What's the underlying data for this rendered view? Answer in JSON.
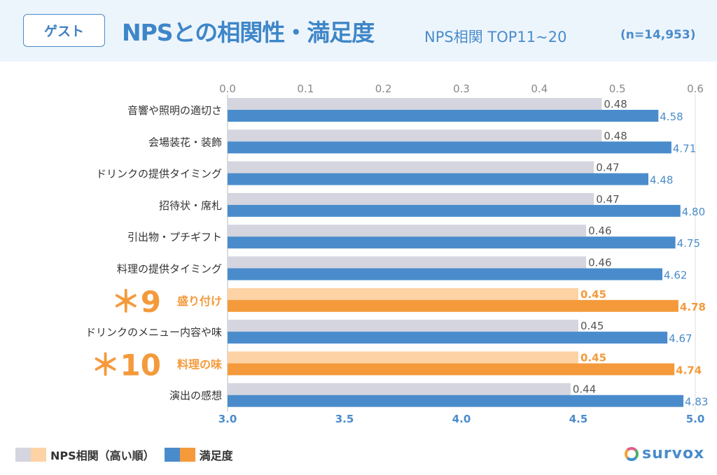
{
  "header": {
    "badge": "ゲスト",
    "title": "NPSとの相関性・満足度",
    "subtitle": "NPS相関 TOP11~20",
    "sample": "(n=14,953)"
  },
  "legend": {
    "nps": "NPS相関（高い順）",
    "sat": "満足度"
  },
  "logo": "survox",
  "colors": {
    "grey": "#d4d5df",
    "blue": "#4a8ccb",
    "lightOrange": "#fdd3a5",
    "orange": "#f49a3b"
  },
  "chart_data": {
    "type": "bar",
    "orientation": "horizontal",
    "top_axis": {
      "name": "NPS相関",
      "range": [
        0,
        0.6
      ],
      "ticks": [
        "0.0",
        "0.1",
        "0.2",
        "0.3",
        "0.4",
        "0.5",
        "0.6"
      ]
    },
    "bottom_axis": {
      "name": "満足度",
      "range": [
        3.0,
        5.0
      ],
      "ticks": [
        "3.0",
        "3.5",
        "4.0",
        "4.5",
        "5.0"
      ]
    },
    "categories": [
      "音響や照明の適切さ",
      "会場装花・装飾",
      "ドリンクの提供タイミング",
      "招待状・席札",
      "引出物・プチギフト",
      "料理の提供タイミング",
      "盛り付け",
      "ドリンクのメニュー内容や味",
      "料理の味",
      "演出の感想"
    ],
    "highlight": [
      null,
      null,
      null,
      null,
      null,
      null,
      "＊9",
      null,
      "＊10",
      null
    ],
    "series": [
      {
        "name": "NPS相関",
        "values": [
          0.48,
          0.48,
          0.47,
          0.47,
          0.46,
          0.46,
          0.45,
          0.45,
          0.45,
          0.44
        ]
      },
      {
        "name": "満足度",
        "values": [
          4.58,
          4.71,
          4.48,
          4.8,
          4.75,
          4.62,
          4.78,
          4.67,
          4.74,
          4.83
        ]
      }
    ]
  }
}
